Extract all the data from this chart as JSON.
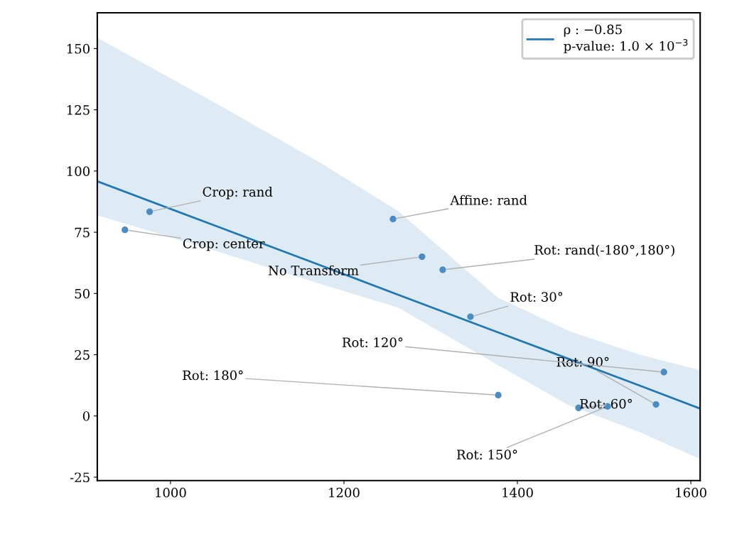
{
  "chart_data": {
    "type": "scatter",
    "xlim": [
      915.6,
      1610.7
    ],
    "ylim": [
      -26.4,
      164.6
    ],
    "xticks": [
      1000,
      1200,
      1400,
      1600
    ],
    "yticks": [
      -25,
      0,
      25,
      50,
      75,
      100,
      125,
      150
    ],
    "grid": false,
    "legend": "top right",
    "series": [
      {
        "marker": "circle",
        "color": "#4a8cc4",
        "x": [
          947.5,
          976,
          1256.6,
          1290,
          1313.9,
          1345.9,
          1377.9,
          1470.5,
          1504,
          1559.8,
          1568.9
        ],
        "values": [
          76.0,
          83.4,
          80.4,
          65.0,
          59.7,
          40.5,
          8.5,
          3.3,
          3.9,
          4.7,
          17.9
        ]
      },
      {
        "type": "line",
        "name": "ρ : −0.85\np-value: 1.0 × 10$^{−3}$",
        "color": "#1f77b4",
        "x": [
          915.6,
          1049.2,
          1172.1,
          1262.3,
          1377.0,
          1459.0,
          1541.0,
          1610.7
        ],
        "values": [
          95.8,
          78.0,
          61.6,
          49.5,
          34.2,
          23.3,
          12.4,
          3.0
        ],
        "upper": [
          154.4,
          128.3,
          103.5,
          83.7,
          48.4,
          34.7,
          25.0,
          18.7
        ],
        "lower": [
          82.0,
          67.7,
          54.0,
          44.3,
          20.9,
          4.4,
          -6.6,
          -17.6
        ]
      }
    ],
    "annotations": [
      {
        "text": "Crop: center",
        "x": 947.5,
        "y": 76.0
      },
      {
        "text": "Crop: rand",
        "x": 976,
        "y": 83.4
      },
      {
        "text": "Affine: rand",
        "x": 1256.6,
        "y": 80.4
      },
      {
        "text": "No Transform",
        "x": 1290,
        "y": 65.0
      },
      {
        "text": "Rot: rand(-180°,180°)",
        "x": 1313.9,
        "y": 59.7
      },
      {
        "text": "Rot: 30°",
        "x": 1345.9,
        "y": 40.5
      },
      {
        "text": "Rot: 180°",
        "x": 1377.9,
        "y": 8.5
      },
      {
        "text": "Rot: 60°",
        "x": 1470.5,
        "y": 3.3
      },
      {
        "text": "Rot: 150°",
        "x": 1504,
        "y": 3.9
      },
      {
        "text": "Rot: 90°",
        "x": 1559.8,
        "y": 4.7
      },
      {
        "text": "Rot: 120°",
        "x": 1568.9,
        "y": 17.9
      }
    ]
  }
}
